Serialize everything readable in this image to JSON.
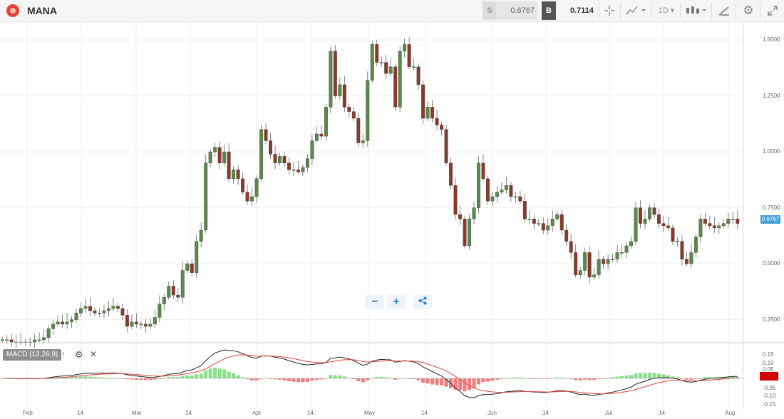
{
  "header": {
    "symbol": "MANA",
    "sell_label": "S",
    "sell_price": "0.6767",
    "buy_label": "B",
    "buy_price": "0.7114",
    "timeframe": "1D",
    "icons": [
      "crosshair-icon",
      "line-chart-icon",
      "candlestick-icon",
      "draw-icon",
      "gear-icon",
      "expand-icon"
    ]
  },
  "indicator": {
    "label": "MACD (12,26,9)",
    "colors": {
      "macd": "#222222",
      "signal": "#e8413a",
      "hist_pos": "#8be08b",
      "hist_neg": "#f08080"
    }
  },
  "current_price_label": "0.6767",
  "colors": {
    "up": "#5a8a4a",
    "down": "#8b3a2a",
    "grid": "#eeeeee",
    "price_tag": "#4aa1d8"
  },
  "chart_data": {
    "type": "candlestick",
    "x_tick_labels": [
      "Feb",
      "14",
      "Mar",
      "14",
      "Apr",
      "14",
      "May",
      "14",
      "Jun",
      "14",
      "Jul",
      "14",
      "Aug"
    ],
    "y_tick_labels": [
      "1.5000",
      "1.2500",
      "1.0000",
      "0.7500",
      "0.5000",
      "0.2500"
    ],
    "y_ticks": [
      1.5,
      1.25,
      1.0,
      0.75,
      0.5,
      0.25
    ],
    "ylim": [
      0.15,
      1.58
    ],
    "closes": [
      0.16,
      0.16,
      0.15,
      0.15,
      0.15,
      0.15,
      0.15,
      0.16,
      0.16,
      0.17,
      0.21,
      0.23,
      0.24,
      0.23,
      0.24,
      0.25,
      0.28,
      0.3,
      0.31,
      0.29,
      0.28,
      0.28,
      0.29,
      0.3,
      0.31,
      0.3,
      0.27,
      0.22,
      0.24,
      0.23,
      0.23,
      0.22,
      0.23,
      0.26,
      0.32,
      0.35,
      0.4,
      0.36,
      0.35,
      0.47,
      0.5,
      0.46,
      0.6,
      0.65,
      0.95,
      1.0,
      1.02,
      0.95,
      1.0,
      0.88,
      0.92,
      0.88,
      0.82,
      0.78,
      0.8,
      0.88,
      1.1,
      1.05,
      0.99,
      0.95,
      0.98,
      0.95,
      0.92,
      0.92,
      0.91,
      0.93,
      0.97,
      1.05,
      1.08,
      1.07,
      1.2,
      1.45,
      1.25,
      1.3,
      1.2,
      1.18,
      1.15,
      1.04,
      1.05,
      1.32,
      1.48,
      1.4,
      1.4,
      1.35,
      1.38,
      1.2,
      1.45,
      1.48,
      1.38,
      1.38,
      1.3,
      1.15,
      1.2,
      1.15,
      1.12,
      1.1,
      0.95,
      0.85,
      0.72,
      0.7,
      0.58,
      0.7,
      0.75,
      0.95,
      0.88,
      0.78,
      0.8,
      0.82,
      0.83,
      0.85,
      0.8,
      0.8,
      0.78,
      0.7,
      0.7,
      0.68,
      0.68,
      0.65,
      0.67,
      0.7,
      0.72,
      0.65,
      0.6,
      0.55,
      0.45,
      0.47,
      0.55,
      0.44,
      0.45,
      0.52,
      0.5,
      0.52,
      0.52,
      0.55,
      0.55,
      0.58,
      0.6,
      0.75,
      0.68,
      0.7,
      0.75,
      0.72,
      0.68,
      0.67,
      0.66,
      0.6,
      0.6,
      0.52,
      0.5,
      0.55,
      0.62,
      0.7,
      0.68,
      0.67,
      0.66,
      0.67,
      0.68,
      0.7,
      0.7,
      0.68
    ]
  }
}
